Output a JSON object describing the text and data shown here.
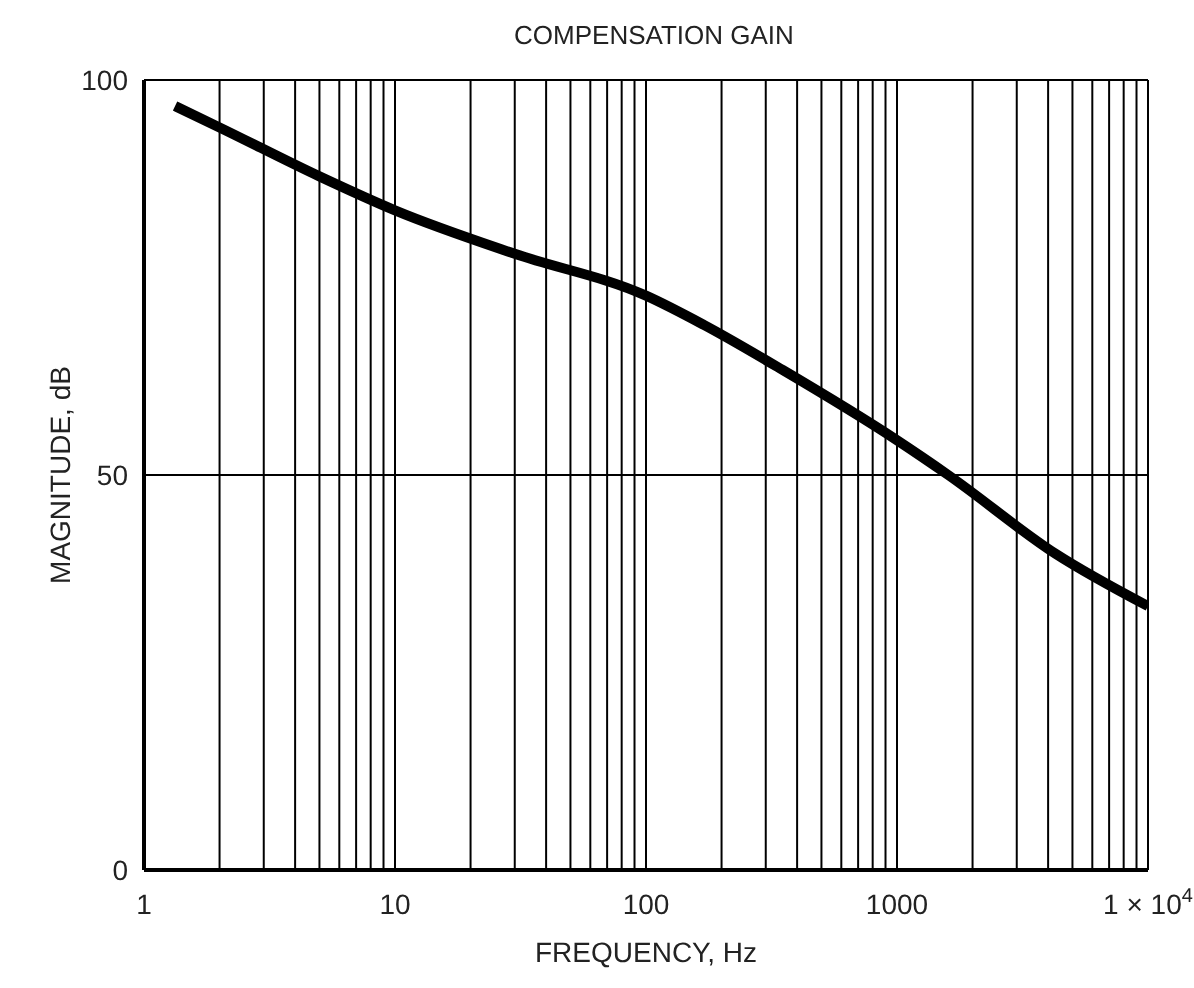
{
  "chart_data": {
    "type": "line",
    "title": "COMPENSATION GAIN",
    "xlabel": "FREQUENCY, Hz",
    "ylabel": "MAGNITUDE, dB",
    "log": "x",
    "grid": true,
    "marker": "none",
    "line_style": "solid",
    "x": [
      1.33,
      2,
      5,
      10,
      30,
      100,
      170,
      350,
      1000,
      1600,
      4300,
      10000
    ],
    "series": [
      {
        "color": "#000000",
        "values": [
          96.7,
          94,
          87.8,
          83.5,
          78,
          72.7,
          69,
          63.3,
          54.4,
          50,
          40,
          33.4
        ]
      }
    ],
    "xlim": [
      1,
      10000
    ],
    "xticks": [
      1,
      {
        "value": 2,
        "label": null
      },
      {
        "value": 3,
        "label": null
      },
      {
        "value": 4,
        "label": null
      },
      {
        "value": 5,
        "label": null
      },
      {
        "value": 6,
        "label": null
      },
      {
        "value": 7,
        "label": null
      },
      {
        "value": 8,
        "label": null
      },
      {
        "value": 9,
        "label": null
      },
      10,
      {
        "value": 20,
        "label": null
      },
      {
        "value": 30,
        "label": null
      },
      {
        "value": 40,
        "label": null
      },
      {
        "value": 50,
        "label": null
      },
      {
        "value": 60,
        "label": null
      },
      {
        "value": 70,
        "label": null
      },
      {
        "value": 80,
        "label": null
      },
      {
        "value": 90,
        "label": null
      },
      100,
      {
        "value": 200,
        "label": null
      },
      {
        "value": 300,
        "label": null
      },
      {
        "value": 400,
        "label": null
      },
      {
        "value": 500,
        "label": null
      },
      {
        "value": 600,
        "label": null
      },
      {
        "value": 700,
        "label": null
      },
      {
        "value": 800,
        "label": null
      },
      {
        "value": 900,
        "label": null
      },
      1000,
      {
        "value": 2000,
        "label": null
      },
      {
        "value": 3000,
        "label": null
      },
      {
        "value": 4000,
        "label": null
      },
      {
        "value": 5000,
        "label": null
      },
      {
        "value": 6000,
        "label": null
      },
      {
        "value": 7000,
        "label": null
      },
      {
        "value": 8000,
        "label": null
      },
      {
        "value": 9000,
        "label": null
      },
      {
        "value": 10000,
        "label": "1 × 10$^{4}$"
      }
    ],
    "ylim": [
      0,
      100
    ],
    "yticks": [
      0,
      50,
      100
    ]
  }
}
